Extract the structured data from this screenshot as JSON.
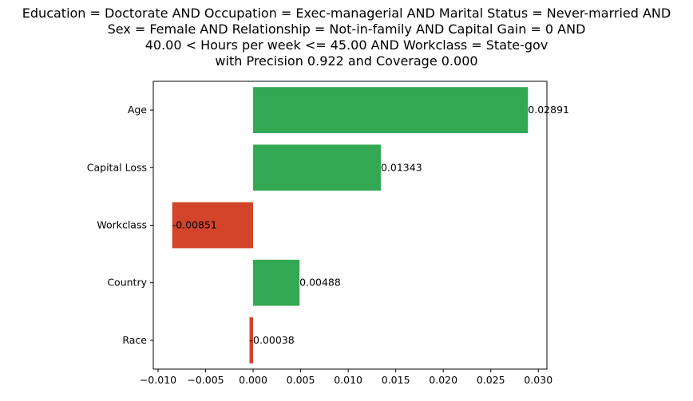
{
  "chart_data": {
    "type": "bar",
    "orientation": "horizontal",
    "title": [
      "Education = Doctorate AND Occupation = Exec-managerial AND Marital Status = Never-married AND",
      "Sex = Female AND Relationship = Not-in-family AND Capital Gain = 0 AND",
      "40.00 < Hours per week <= 45.00 AND Workclass = State-gov",
      "with Precision 0.922 and Coverage 0.000"
    ],
    "xlabel": "",
    "ylabel": "",
    "categories": [
      "Age",
      "Capital Loss",
      "Workclass",
      "Country",
      "Race"
    ],
    "values": [
      0.02891,
      0.01343,
      -0.00851,
      0.00488,
      -0.00038
    ],
    "value_labels": [
      "0.02891",
      "0.01343",
      "-0.00851",
      "0.00488",
      "-0.00038"
    ],
    "xlim": [
      -0.0105,
      0.0309
    ],
    "xticks": [
      -0.01,
      -0.005,
      0.0,
      0.005,
      0.01,
      0.015,
      0.02,
      0.025,
      0.03
    ],
    "xtick_labels": [
      "−0.010",
      "−0.005",
      "0.000",
      "0.005",
      "0.010",
      "0.015",
      "0.020",
      "0.025",
      "0.030"
    ],
    "colors": {
      "positive": "#33a852",
      "negative": "#d2452b",
      "axes": "#000000"
    },
    "grid": false,
    "legend": "none"
  }
}
